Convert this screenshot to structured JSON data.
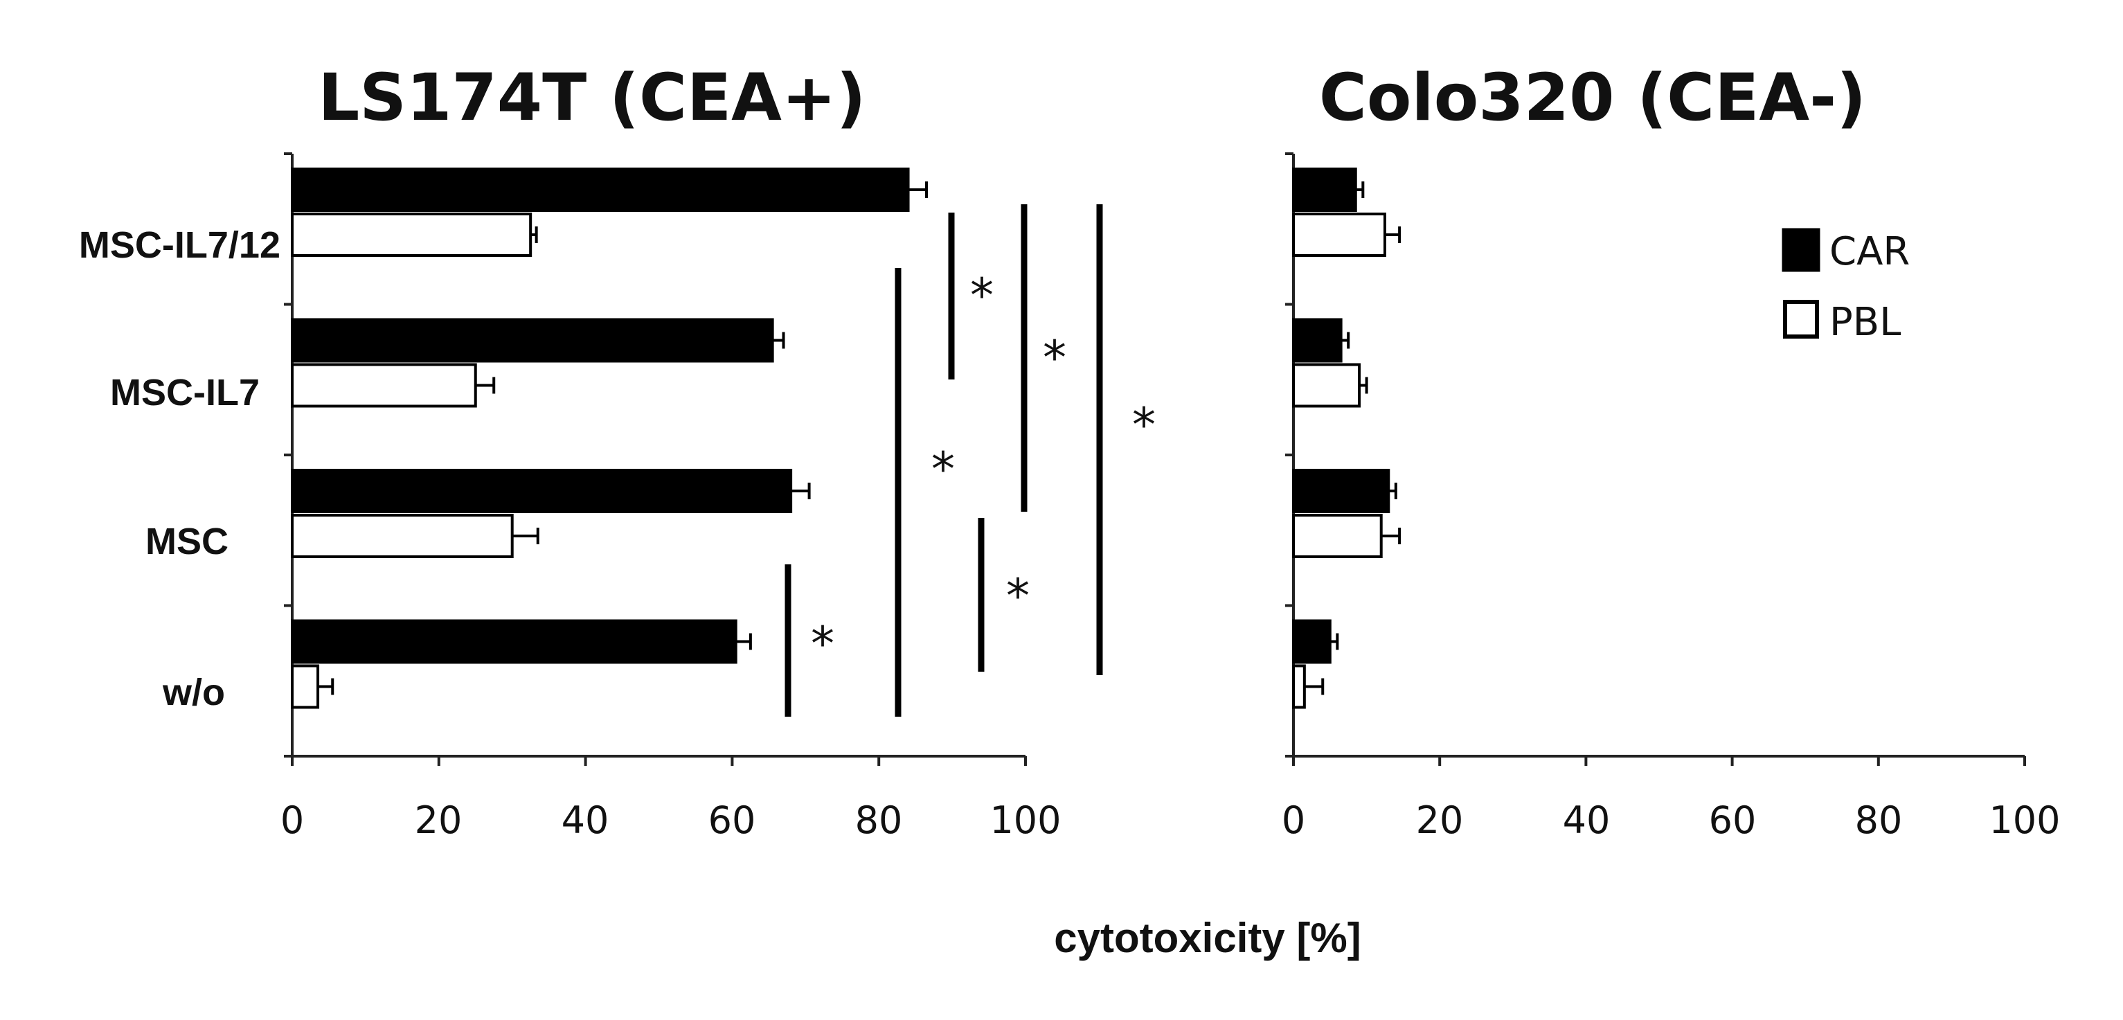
{
  "chart_data": [
    {
      "type": "bar",
      "orientation": "horizontal",
      "title": "LS174T (CEA+)",
      "categories": [
        "MSC-IL7/12",
        "MSC-IL7",
        "MSC",
        "w/o"
      ],
      "series": [
        {
          "name": "CAR",
          "color": "#000000",
          "values": [
            84,
            65.5,
            68,
            60.5
          ],
          "errors": [
            2.5,
            1.5,
            2.5,
            2
          ]
        },
        {
          "name": "PBL",
          "color": "#ffffff",
          "values": [
            32.5,
            25,
            30,
            3.5
          ],
          "errors": [
            0.8,
            2.5,
            3.5,
            2
          ]
        }
      ],
      "xlim": [
        0,
        100
      ],
      "xticks": [
        "0",
        "20",
        "40",
        "60",
        "80",
        "100"
      ],
      "significance": [
        {
          "from": "MSC-IL7/12",
          "to": "MSC-IL7",
          "label": "*"
        },
        {
          "from": "MSC-IL7/12",
          "to": "MSC",
          "label": "*"
        },
        {
          "from": "MSC-IL7/12",
          "to": "w/o",
          "label": "*"
        },
        {
          "from": "MSC-IL7",
          "to": "w/o",
          "label": "*"
        },
        {
          "from": "MSC",
          "to": "w/o",
          "label": "*"
        },
        {
          "from": "w/o",
          "to": "w/o",
          "label": "*"
        }
      ]
    },
    {
      "type": "bar",
      "orientation": "horizontal",
      "title": "Colo320 (CEA-)",
      "categories": [
        "MSC-IL7/12",
        "MSC-IL7",
        "MSC",
        "w/o"
      ],
      "series": [
        {
          "name": "CAR",
          "color": "#000000",
          "values": [
            8.5,
            6.5,
            13,
            5
          ],
          "errors": [
            1,
            1,
            1,
            1
          ]
        },
        {
          "name": "PBL",
          "color": "#ffffff",
          "values": [
            12.5,
            9,
            12,
            1.5
          ],
          "errors": [
            2,
            1,
            2.5,
            2.5
          ]
        }
      ],
      "xlim": [
        0,
        100
      ],
      "xticks": [
        "0",
        "20",
        "40",
        "60",
        "80",
        "100"
      ],
      "legend": {
        "position": "top-right",
        "entries": [
          "CAR",
          "PBL"
        ]
      }
    }
  ],
  "xlabel": "cytotoxicity [%]"
}
